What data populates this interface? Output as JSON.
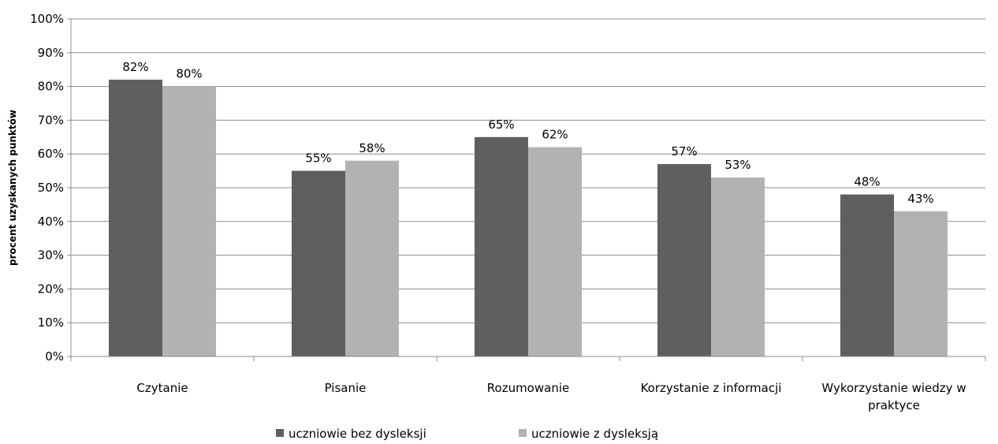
{
  "chart_data": {
    "type": "bar",
    "categories": [
      "Czytanie",
      "Pisanie",
      "Rozumowanie",
      "Korzystanie z informacji",
      "Wykorzystanie wiedzy w praktyce"
    ],
    "category_lines": [
      [
        "Czytanie"
      ],
      [
        "Pisanie"
      ],
      [
        "Rozumowanie"
      ],
      [
        "Korzystanie z informacji"
      ],
      [
        "Wykorzystanie wiedzy w",
        "praktyce"
      ]
    ],
    "series": [
      {
        "name": "uczniowie bez dysleksji",
        "values": [
          82,
          55,
          65,
          57,
          48
        ],
        "color": "#5f5f5f"
      },
      {
        "name": "uczniowie z dysleksją",
        "values": [
          80,
          58,
          62,
          53,
          43
        ],
        "color": "#b2b2b2"
      }
    ],
    "value_suffix": "%",
    "xlabel": "",
    "ylabel": "procent uzyskanych punktów",
    "ylim": [
      0,
      100
    ],
    "yticks": [
      0,
      10,
      20,
      30,
      40,
      50,
      60,
      70,
      80,
      90,
      100
    ],
    "grid": true,
    "legend": "bottom",
    "gridline_color": "#8c8c8c",
    "axis_color": "#8c8c8c"
  }
}
